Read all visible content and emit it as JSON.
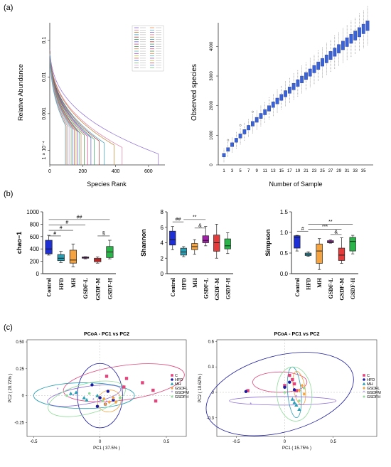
{
  "panel_labels": {
    "a": "(a)",
    "b": "(b)",
    "c": "(c)"
  },
  "colors": {
    "blue": "#1f2fd6",
    "cyan": "#2a9fb3",
    "orange": "#f4a340",
    "purple": "#a020a8",
    "red": "#e53a3a",
    "green": "#2bb44a",
    "pink": "#e0457b",
    "navy": "#1a1aa0",
    "lav": "#8a6ad8",
    "lgreen": "#8fdc9a"
  },
  "chart_data": [
    {
      "id": "rank_abundance",
      "type": "line",
      "xlabel": "Species Rank",
      "ylabel": "Relative Abundance",
      "x_ticks": [
        "0",
        "200",
        "400",
        "600"
      ],
      "y_ticks": [
        "0.1",
        "0.01",
        "0.001",
        "1 × 10⁻⁴"
      ],
      "y_scale": "log",
      "xlim": [
        0,
        700
      ],
      "ylim": [
        4e-05,
        0.3
      ],
      "series_count": 36,
      "curves": [
        {
          "end_rank": 660,
          "tail": 8e-05,
          "color": "#8a6ad8"
        },
        {
          "end_rank": 440,
          "tail": 0.00012,
          "color": "#e07aa0"
        },
        {
          "end_rank": 390,
          "tail": 0.00014,
          "color": "#c08030"
        },
        {
          "end_rank": 330,
          "tail": 0.00016,
          "color": "#3aa0c0"
        },
        {
          "end_rank": 300,
          "tail": 0.00018,
          "color": "#b03030"
        },
        {
          "end_rank": 270,
          "tail": 0.0002,
          "color": "#30a060"
        },
        {
          "end_rank": 250,
          "tail": 0.00022,
          "color": "#6060d0"
        },
        {
          "end_rank": 230,
          "tail": 0.00024,
          "color": "#d04080"
        },
        {
          "end_rank": 210,
          "tail": 0.00026,
          "color": "#409040"
        },
        {
          "end_rank": 190,
          "tail": 0.00028,
          "color": "#d08040"
        },
        {
          "end_rank": 180,
          "tail": 0.0003,
          "color": "#40c0c0"
        },
        {
          "end_rank": 170,
          "tail": 0.00032,
          "color": "#a040c0"
        },
        {
          "end_rank": 160,
          "tail": 0.00034,
          "color": "#c0c040"
        },
        {
          "end_rank": 150,
          "tail": 0.00036,
          "color": "#e05050"
        },
        {
          "end_rank": 140,
          "tail": 0.00038,
          "color": "#5080e0"
        },
        {
          "end_rank": 130,
          "tail": 0.0004,
          "color": "#70c070"
        },
        {
          "end_rank": 120,
          "tail": 0.00042,
          "color": "#e0a0e0"
        },
        {
          "end_rank": 110,
          "tail": 0.00044,
          "color": "#909090"
        },
        {
          "end_rank": 100,
          "tail": 0.00046,
          "color": "#f09050"
        },
        {
          "end_rank": 95,
          "tail": 0.00048,
          "color": "#50b0e0"
        }
      ]
    },
    {
      "id": "observed_species",
      "type": "box",
      "xlabel": "Number of Sample",
      "ylabel": "Observed species",
      "x_ticks": [
        "1",
        "3",
        "5",
        "7",
        "9",
        "11",
        "13",
        "15",
        "17",
        "19",
        "21",
        "23",
        "25",
        "27",
        "29",
        "31",
        "33",
        "35"
      ],
      "y_ticks": [
        "0",
        "1000",
        "2000",
        "3000",
        "4000"
      ],
      "ylim": [
        0,
        4800
      ],
      "n_samples": 36,
      "medians_start": 330,
      "medians_end": 4700,
      "box_color": "#3a63d6"
    },
    {
      "id": "chao1",
      "type": "box",
      "ylabel": "chao−1",
      "categories": [
        "Control",
        "HFD",
        "MH",
        "GSDF-L",
        "GSDF-M",
        "GSDF-H"
      ],
      "ylim": [
        0,
        1000
      ],
      "y_ticks": [
        "0",
        "200",
        "400",
        "600",
        "800",
        "1000"
      ],
      "boxes": [
        {
          "min": 300,
          "q1": 320,
          "median": 400,
          "q3": 540,
          "max": 620,
          "color": "#1f2fd6"
        },
        {
          "min": 180,
          "q1": 210,
          "median": 250,
          "q3": 310,
          "max": 360,
          "color": "#2a9fb3"
        },
        {
          "min": 110,
          "q1": 170,
          "median": 220,
          "q3": 380,
          "max": 480,
          "color": "#f4a340"
        },
        {
          "min": 240,
          "q1": 250,
          "median": 255,
          "q3": 270,
          "max": 275,
          "color": "#a020a8"
        },
        {
          "min": 170,
          "q1": 190,
          "median": 220,
          "q3": 250,
          "max": 270,
          "color": "#e53a3a"
        },
        {
          "min": 240,
          "q1": 260,
          "median": 350,
          "q3": 440,
          "max": 540,
          "color": "#2bb44a"
        }
      ],
      "significance": [
        {
          "from": 0,
          "to": 5,
          "label": "##",
          "y": 875
        },
        {
          "from": 0,
          "to": 3,
          "label": "#",
          "y": 790
        },
        {
          "from": 0,
          "to": 2,
          "label": "#",
          "y": 700
        },
        {
          "from": 0,
          "to": 1,
          "label": "#",
          "y": 610
        },
        {
          "from": 4,
          "to": 5,
          "label": "§",
          "y": 610
        }
      ]
    },
    {
      "id": "shannon",
      "type": "box",
      "ylabel": "Shannon",
      "categories": [
        "Control",
        "HFD",
        "MH",
        "GSDF-L",
        "GSDF-M",
        "GSDF-H"
      ],
      "ylim": [
        0,
        8
      ],
      "y_ticks": [
        "0",
        "2",
        "4",
        "6",
        "8"
      ],
      "boxes": [
        {
          "min": 3.1,
          "q1": 3.7,
          "median": 4.4,
          "q3": 5.5,
          "max": 6.1,
          "color": "#1f2fd6"
        },
        {
          "min": 2.2,
          "q1": 2.4,
          "median": 2.8,
          "q3": 3.3,
          "max": 3.5,
          "color": "#2a9fb3"
        },
        {
          "min": 2.5,
          "q1": 3.1,
          "median": 3.5,
          "q3": 3.9,
          "max": 4.4,
          "color": "#f4a340"
        },
        {
          "min": 3.6,
          "q1": 4.0,
          "median": 4.3,
          "q3": 4.9,
          "max": 6.1,
          "color": "#a020a8"
        },
        {
          "min": 2.0,
          "q1": 2.9,
          "median": 4.0,
          "q3": 5.0,
          "max": 6.4,
          "color": "#e53a3a"
        },
        {
          "min": 2.6,
          "q1": 3.2,
          "median": 3.6,
          "q3": 4.5,
          "max": 5.3,
          "color": "#2bb44a"
        }
      ],
      "significance": [
        {
          "from": 0,
          "to": 1,
          "label": "##",
          "y": 6.7
        },
        {
          "from": 1,
          "to": 3,
          "label": "**",
          "y": 7.0
        },
        {
          "from": 2,
          "to": 3,
          "label": "&",
          "y": 5.9
        }
      ]
    },
    {
      "id": "simpson",
      "type": "box",
      "ylabel": "Simpson",
      "categories": [
        "Control",
        "HFD",
        "MH",
        "GSDF-L",
        "GSDF-M",
        "GSDF-H"
      ],
      "ylim": [
        0,
        1.5
      ],
      "y_ticks": [
        "0.0",
        "0.5",
        "1.0",
        "1.5"
      ],
      "boxes": [
        {
          "min": 0.55,
          "q1": 0.62,
          "median": 0.88,
          "q3": 0.92,
          "max": 0.93,
          "color": "#1f2fd6"
        },
        {
          "min": 0.42,
          "q1": 0.44,
          "median": 0.47,
          "q3": 0.5,
          "max": 0.53,
          "color": "#2a9fb3"
        },
        {
          "min": 0.1,
          "q1": 0.25,
          "median": 0.55,
          "q3": 0.72,
          "max": 0.85,
          "color": "#f4a340"
        },
        {
          "min": 0.74,
          "q1": 0.75,
          "median": 0.77,
          "q3": 0.8,
          "max": 0.82,
          "color": "#a020a8"
        },
        {
          "min": 0.25,
          "q1": 0.32,
          "median": 0.45,
          "q3": 0.62,
          "max": 0.87,
          "color": "#e53a3a"
        },
        {
          "min": 0.48,
          "q1": 0.55,
          "median": 0.78,
          "q3": 0.88,
          "max": 0.93,
          "color": "#2bb44a"
        }
      ],
      "significance": [
        {
          "from": 0,
          "to": 1,
          "label": "#",
          "y": 1.03
        },
        {
          "from": 1,
          "to": 5,
          "label": "**",
          "y": 1.2
        },
        {
          "from": 1,
          "to": 4,
          "label": "***",
          "y": 1.08
        },
        {
          "from": 3,
          "to": 4,
          "label": "&",
          "y": 0.95
        }
      ]
    },
    {
      "id": "pcoa_left",
      "type": "scatter",
      "title": "PCoA - PC1 vs PC2",
      "xlabel": "PC1 ( 37.5% )",
      "ylabel": "PC2 ( 20.72% )",
      "xlim": [
        -0.55,
        0.65
      ],
      "ylim": [
        -0.38,
        0.52
      ],
      "x_ticks": [
        "-0.5",
        "0",
        "0.5"
      ],
      "y_ticks": [
        "-0.25",
        "0",
        "0.25",
        "0.50"
      ],
      "legend": [
        "C",
        "HFD",
        "MH",
        "GSDFL",
        "GSDFM",
        "GSDFH"
      ],
      "groups": [
        {
          "name": "C",
          "color": "#e0457b",
          "marker": "square",
          "points": [
            [
              0.05,
              0.18
            ],
            [
              0.2,
              0.16
            ],
            [
              0.32,
              0.12
            ],
            [
              0.18,
              0.08
            ],
            [
              0.4,
              0.05
            ],
            [
              0.42,
              -0.05
            ]
          ],
          "ellipse": {
            "cx": 0.18,
            "cy": 0.12,
            "rx": 0.46,
            "ry": 0.16,
            "rot": -8
          }
        },
        {
          "name": "HFD",
          "color": "#1a1aa0",
          "marker": "circle",
          "points": [
            [
              -0.06,
              0.1
            ],
            [
              0.0,
              -0.02
            ],
            [
              0.04,
              -0.08
            ],
            [
              -0.02,
              -0.1
            ],
            [
              0.1,
              -0.04
            ],
            [
              0.06,
              0.04
            ]
          ],
          "ellipse": {
            "cx": 0.0,
            "cy": 0.0,
            "rx": 0.17,
            "ry": 0.3,
            "rot": 0
          }
        },
        {
          "name": "MH",
          "color": "#2a9fb3",
          "marker": "triangle",
          "points": [
            [
              -0.22,
              0.02
            ],
            [
              -0.12,
              -0.02
            ],
            [
              -0.18,
              0.03
            ],
            [
              -0.02,
              0.0
            ],
            [
              -0.1,
              -0.04
            ]
          ],
          "ellipse": {
            "cx": -0.12,
            "cy": 0.0,
            "rx": 0.38,
            "ry": 0.12,
            "rot": 0
          }
        },
        {
          "name": "GSDFL",
          "color": "#f4a340",
          "marker": "diamond",
          "points": [
            [
              0.03,
              -0.03
            ],
            [
              0.07,
              -0.06
            ],
            [
              0.1,
              -0.02
            ],
            [
              0.04,
              -0.08
            ],
            [
              0.12,
              -0.06
            ]
          ],
          "ellipse": {
            "cx": 0.07,
            "cy": -0.05,
            "rx": 0.09,
            "ry": 0.1,
            "rot": -25
          }
        },
        {
          "name": "GSDFM",
          "color": "#8a6ad8",
          "marker": "star",
          "points": [
            [
              -0.32,
              0.06
            ],
            [
              -0.2,
              0.0
            ],
            [
              -0.05,
              -0.04
            ],
            [
              0.05,
              -0.06
            ]
          ],
          "ellipse": {
            "cx": -0.12,
            "cy": 0.0,
            "rx": 0.28,
            "ry": 0.08,
            "rot": -10
          }
        },
        {
          "name": "GSDFH",
          "color": "#8fdc9a",
          "marker": "point",
          "points": [
            [
              -0.25,
              0.0
            ],
            [
              -0.08,
              0.02
            ],
            [
              0.02,
              -0.05
            ],
            [
              0.15,
              -0.02
            ]
          ],
          "ellipse": {
            "cx": -0.1,
            "cy": -0.03,
            "rx": 0.3,
            "ry": 0.14,
            "rot": -15
          }
        }
      ]
    },
    {
      "id": "pcoa_right",
      "type": "scatter",
      "title": "PCoA - PC1 vs PC2",
      "xlabel": "PC1 ( 15.75% )",
      "ylabel": "PC2 ( 10.62% )",
      "xlim": [
        -0.7,
        0.95
      ],
      "ylim": [
        -0.52,
        0.62
      ],
      "x_ticks": [
        "-0.5",
        "0",
        "0.5"
      ],
      "y_ticks": [
        "-0.3",
        "0",
        "0.3",
        "0.6"
      ],
      "legend": [
        "C",
        "HFD",
        "MH",
        "GSDFL",
        "GSDFM",
        "GSDFH"
      ],
      "groups": [
        {
          "name": "C",
          "color": "#e0457b",
          "marker": "square",
          "points": [
            [
              -0.38,
              0.02
            ],
            [
              0.05,
              0.2
            ],
            [
              0.1,
              0.1
            ],
            [
              0.0,
              0.08
            ],
            [
              0.12,
              0.02
            ],
            [
              0.08,
              0.15
            ]
          ],
          "ellipse": {
            "cx": -0.05,
            "cy": 0.12,
            "rx": 0.28,
            "ry": 0.12,
            "rot": 0
          }
        },
        {
          "name": "HFD",
          "color": "#1a1aa0",
          "marker": "circle",
          "points": [
            [
              -0.4,
              0.01
            ],
            [
              0.05,
              0.12
            ],
            [
              0.0,
              0.06
            ],
            [
              0.1,
              0.03
            ]
          ],
          "ellipse": {
            "cx": -0.05,
            "cy": -0.02,
            "rx": 0.78,
            "ry": 0.45,
            "rot": -15
          }
        },
        {
          "name": "MH",
          "color": "#2a9fb3",
          "marker": "triangle",
          "points": [
            [
              0.08,
              -0.08
            ],
            [
              0.12,
              -0.15
            ],
            [
              0.15,
              -0.2
            ],
            [
              0.1,
              -0.12
            ]
          ],
          "ellipse": {
            "cx": 0.1,
            "cy": 0.0,
            "rx": 0.07,
            "ry": 0.3,
            "rot": -5
          }
        },
        {
          "name": "GSDFL",
          "color": "#f4a340",
          "marker": "diamond",
          "points": [
            [
              0.15,
              0.02
            ],
            [
              0.2,
              -0.02
            ],
            [
              0.18,
              0.08
            ]
          ],
          "ellipse": {
            "cx": 0.15,
            "cy": 0.05,
            "rx": 0.06,
            "ry": 0.2,
            "rot": -10
          }
        },
        {
          "name": "GSDFM",
          "color": "#8a6ad8",
          "marker": "star",
          "points": [
            [
              -0.35,
              -0.14
            ],
            [
              0.1,
              -0.1
            ],
            [
              0.12,
              -0.05
            ]
          ],
          "ellipse": {
            "cx": -0.02,
            "cy": -0.1,
            "rx": 0.55,
            "ry": 0.05,
            "rot": 0
          }
        },
        {
          "name": "GSDFH",
          "color": "#8fdc9a",
          "marker": "point",
          "points": [
            [
              0.0,
              0.0
            ],
            [
              0.15,
              -0.1
            ],
            [
              0.2,
              0.05
            ]
          ],
          "ellipse": {
            "cx": 0.1,
            "cy": -0.02,
            "rx": 0.18,
            "ry": 0.32,
            "rot": -5
          }
        }
      ]
    }
  ]
}
